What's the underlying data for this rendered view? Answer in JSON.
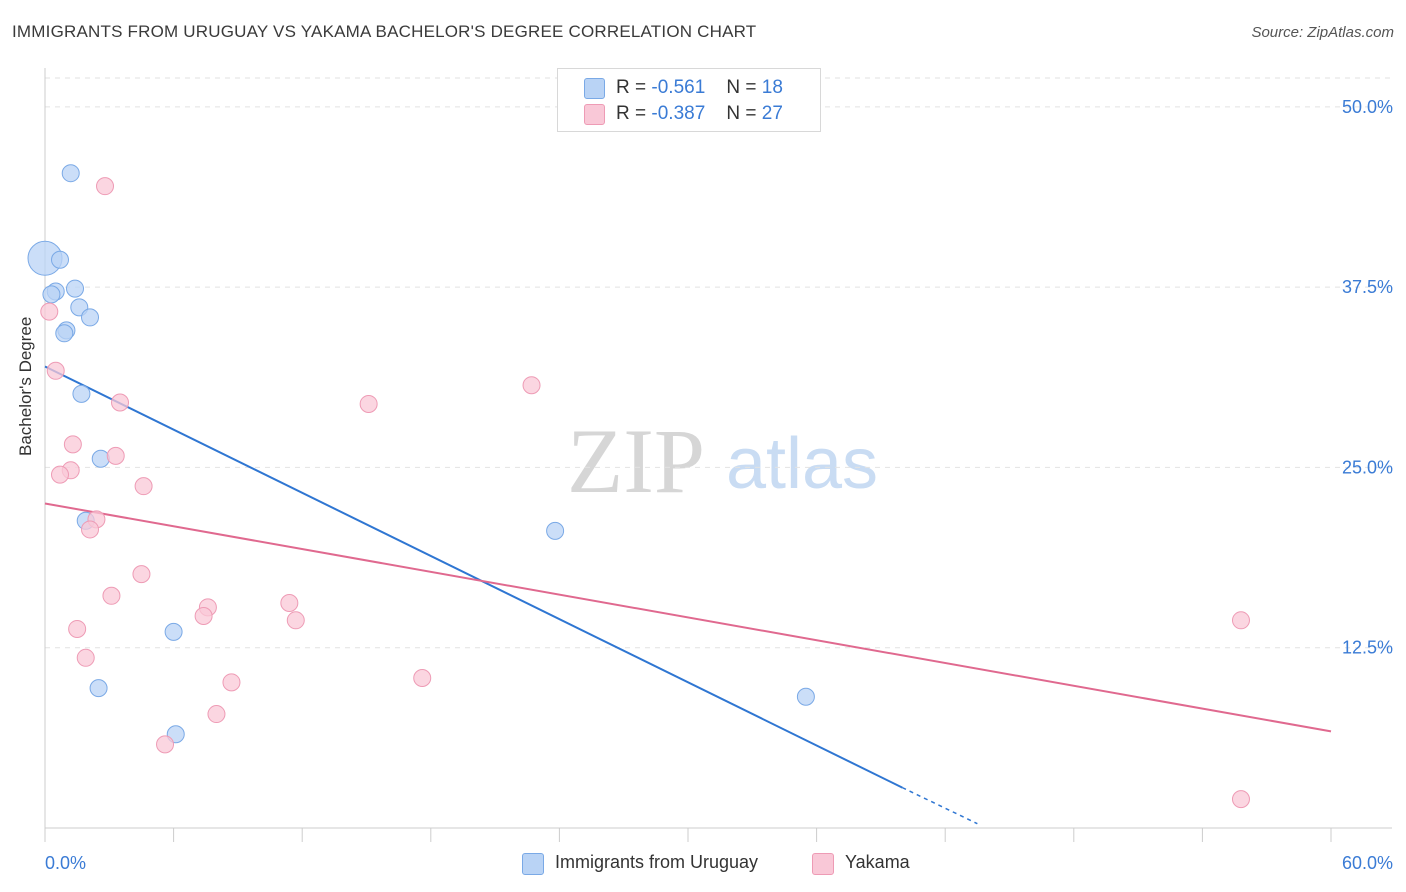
{
  "title": "IMMIGRANTS FROM URUGUAY VS YAKAMA BACHELOR'S DEGREE CORRELATION CHART",
  "source": "Source: ZipAtlas.com",
  "watermark": {
    "zip": "ZIP",
    "atlas": "atlas"
  },
  "legend_top": [
    {
      "r_label": "R =",
      "r_value": "-0.561",
      "n_label": "N =",
      "n_value": "18"
    },
    {
      "r_label": "R =",
      "r_value": "-0.387",
      "n_label": "N =",
      "n_value": "27"
    }
  ],
  "legend_bottom": [
    {
      "label": "Immigrants from Uruguay"
    },
    {
      "label": "Yakama"
    }
  ],
  "colors": {
    "blue_fill": "#b9d3f5",
    "blue_stroke": "#7aa9e6",
    "blue_line": "#2f76d2",
    "pink_fill": "#f9c8d7",
    "pink_stroke": "#ee9bb5",
    "pink_line": "#e0698f",
    "tick_label": "#3a7bd5",
    "grid": "#e2e2e2"
  },
  "chart_data": {
    "type": "scatter",
    "title": "IMMIGRANTS FROM URUGUAY VS YAKAMA BACHELOR'S DEGREE CORRELATION CHART",
    "xlabel": "",
    "ylabel": "Bachelor's Degree",
    "xlim": [
      0,
      60
    ],
    "ylim": [
      0,
      52
    ],
    "x_tick_labels": [
      "0.0%",
      "60.0%"
    ],
    "y_ticks": [
      12.5,
      25.0,
      37.5,
      50.0
    ],
    "y_tick_labels": [
      "12.5%",
      "25.0%",
      "37.5%",
      "50.0%"
    ],
    "grid": true,
    "series": [
      {
        "name": "Immigrants from Uruguay",
        "r": -0.561,
        "n": 18,
        "points": [
          {
            "x": 0.0,
            "y": 39.5,
            "size": "large"
          },
          {
            "x": 0.7,
            "y": 39.4
          },
          {
            "x": 1.2,
            "y": 45.4
          },
          {
            "x": 0.5,
            "y": 37.2
          },
          {
            "x": 0.3,
            "y": 37.0
          },
          {
            "x": 1.4,
            "y": 37.4
          },
          {
            "x": 1.6,
            "y": 36.1
          },
          {
            "x": 2.1,
            "y": 35.4
          },
          {
            "x": 1.0,
            "y": 34.5
          },
          {
            "x": 0.9,
            "y": 34.3
          },
          {
            "x": 1.7,
            "y": 30.1
          },
          {
            "x": 2.6,
            "y": 25.6
          },
          {
            "x": 1.9,
            "y": 21.3
          },
          {
            "x": 23.8,
            "y": 20.6
          },
          {
            "x": 6.0,
            "y": 13.6
          },
          {
            "x": 2.5,
            "y": 9.7
          },
          {
            "x": 35.5,
            "y": 9.1
          },
          {
            "x": 6.1,
            "y": 6.5
          }
        ],
        "trend": {
          "x0": 0.0,
          "y0": 32.0,
          "x1": 40.0,
          "y1": 2.8,
          "dashed_to_x": 43.5,
          "dashed_to_y": 0.3
        }
      },
      {
        "name": "Yakama",
        "r": -0.387,
        "n": 27,
        "points": [
          {
            "x": 2.8,
            "y": 44.5
          },
          {
            "x": 0.2,
            "y": 35.8
          },
          {
            "x": 0.5,
            "y": 31.7
          },
          {
            "x": 22.7,
            "y": 30.7
          },
          {
            "x": 15.1,
            "y": 29.4
          },
          {
            "x": 3.5,
            "y": 29.5
          },
          {
            "x": 1.3,
            "y": 26.6
          },
          {
            "x": 3.3,
            "y": 25.8
          },
          {
            "x": 1.2,
            "y": 24.8
          },
          {
            "x": 0.7,
            "y": 24.5
          },
          {
            "x": 4.6,
            "y": 23.7
          },
          {
            "x": 2.4,
            "y": 21.4
          },
          {
            "x": 2.1,
            "y": 20.7
          },
          {
            "x": 4.5,
            "y": 17.6
          },
          {
            "x": 3.1,
            "y": 16.1
          },
          {
            "x": 7.6,
            "y": 15.3
          },
          {
            "x": 11.4,
            "y": 15.6
          },
          {
            "x": 7.4,
            "y": 14.7
          },
          {
            "x": 11.7,
            "y": 14.4
          },
          {
            "x": 55.8,
            "y": 14.4
          },
          {
            "x": 1.5,
            "y": 13.8
          },
          {
            "x": 1.9,
            "y": 11.8
          },
          {
            "x": 17.6,
            "y": 10.4
          },
          {
            "x": 8.7,
            "y": 10.1
          },
          {
            "x": 8.0,
            "y": 7.9
          },
          {
            "x": 5.6,
            "y": 5.8
          },
          {
            "x": 55.8,
            "y": 2.0
          }
        ],
        "trend": {
          "x0": 0.0,
          "y0": 22.5,
          "x1": 60.0,
          "y1": 6.7
        }
      }
    ]
  }
}
